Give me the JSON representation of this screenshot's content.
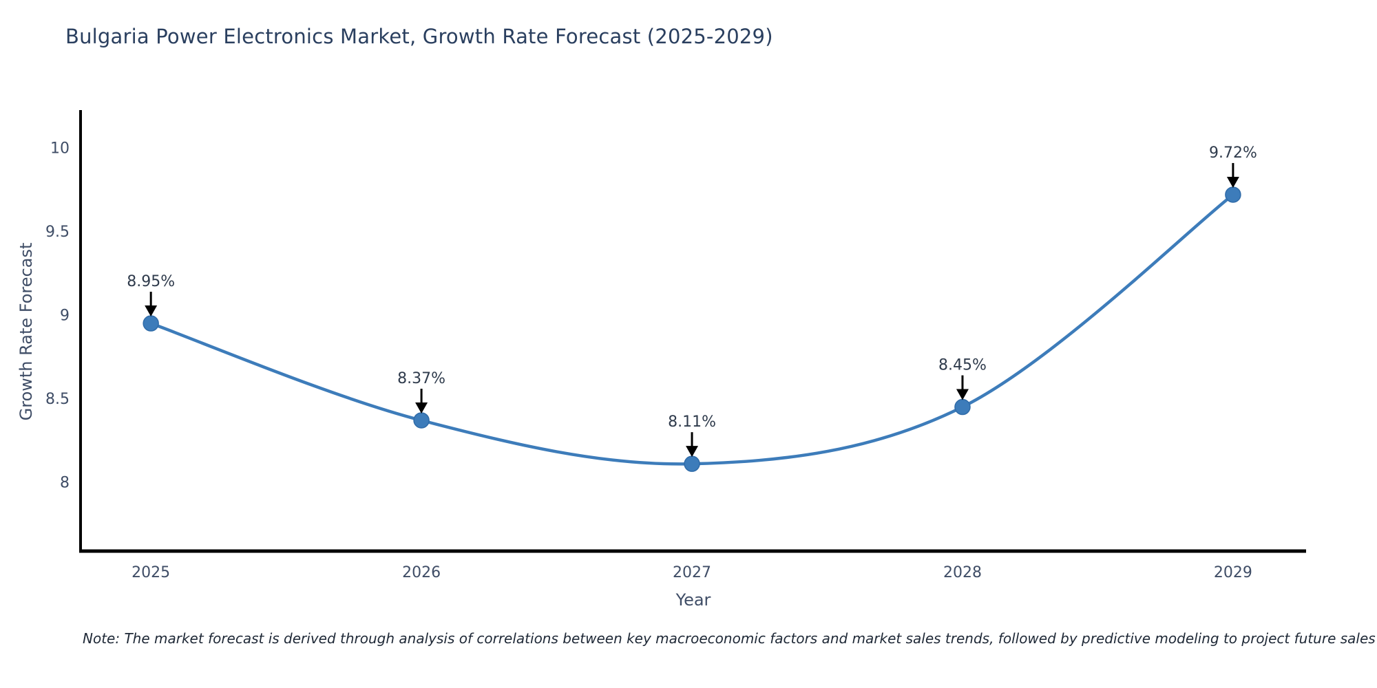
{
  "title": "Bulgaria Power Electronics Market, Growth Rate Forecast (2025-2029)",
  "note": "Note: The market forecast is derived through analysis of correlations between key macroeconomic factors and market sales trends, followed by predictive modeling to project future sales",
  "colors": {
    "line": "#3d7cba",
    "marker_fill": "#3d7cba",
    "marker_edge": "#2f6ba8",
    "arrow": "#000000",
    "spine": "#000000",
    "title_text": "#2a3f5f",
    "axis_text": "#3f4d66",
    "annotation_text": "#2f3b4c",
    "background": "#ffffff"
  },
  "chart_data": {
    "type": "line",
    "title": "Bulgaria Power Electronics Market, Growth Rate Forecast (2025-2029)",
    "xlabel": "Year",
    "ylabel": "Growth Rate Forecast",
    "x": [
      2025,
      2026,
      2027,
      2028,
      2029
    ],
    "values": [
      8.95,
      8.37,
      8.11,
      8.45,
      9.72
    ],
    "point_labels": [
      "8.95%",
      "8.37%",
      "8.11%",
      "8.45%",
      "9.72%"
    ],
    "x_tick_labels": [
      "2025",
      "2026",
      "2027",
      "2028",
      "2029"
    ],
    "y_ticks": [
      8,
      8.5,
      9,
      9.5,
      10
    ],
    "y_tick_labels": [
      "8",
      "8.5",
      "9",
      "9.5",
      "10"
    ],
    "xlim": [
      2024.74,
      2029.27
    ],
    "ylim": [
      7.588,
      10.226
    ],
    "grid": false,
    "legend": "none",
    "line_style": "smooth",
    "marker": "circle",
    "annotations": "value labels with down arrows above each point"
  }
}
